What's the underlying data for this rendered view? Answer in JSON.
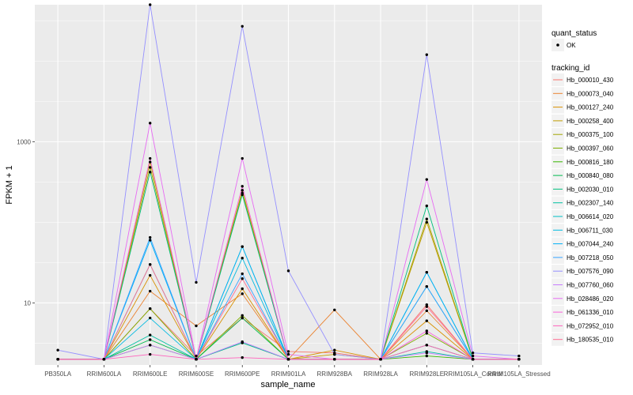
{
  "chart_data": {
    "type": "line",
    "xlabel": "sample_name",
    "ylabel": "FPKM + 1",
    "y_scale": "log10",
    "ylim": [
      1.7,
      50000
    ],
    "y_ticks": [
      10,
      1000
    ],
    "grid": true,
    "legend_position": "right",
    "categories": [
      "PB350LA",
      "RRIM600LA",
      "RRIM600LE",
      "RRIM600SE",
      "RRIM600PE",
      "RRIM901LA",
      "RRIM928BA",
      "RRIM928LA",
      "RRIM928LE",
      "RRIM105LA_Control",
      "RRIM105LA_Stressed"
    ],
    "quant_status": {
      "title": "quant_status",
      "items": [
        "OK"
      ]
    },
    "tracking_id_title": "tracking_id",
    "series": [
      {
        "name": "Hb_000010_430",
        "color": "#F8766D",
        "values": [
          2.0,
          2.0,
          8.5,
          2.2,
          6.5,
          2.5,
          2.4,
          2.0,
          9.5,
          2.0,
          2.0
        ]
      },
      {
        "name": "Hb_000073_040",
        "color": "#EA8331",
        "values": [
          2.0,
          2.0,
          14.0,
          5.2,
          13.0,
          2.0,
          8.2,
          2.0,
          8.0,
          2.0,
          2.0
        ]
      },
      {
        "name": "Hb_000127_240",
        "color": "#D89000",
        "values": [
          2.0,
          2.0,
          22.0,
          2.0,
          15.0,
          2.0,
          2.6,
          2.0,
          6.0,
          2.0,
          2.0
        ]
      },
      {
        "name": "Hb_000258_400",
        "color": "#C09B00",
        "values": [
          2.0,
          2.0,
          560.0,
          2.0,
          250.0,
          2.0,
          2.3,
          2.0,
          100.0,
          2.0,
          2.0
        ]
      },
      {
        "name": "Hb_000375_100",
        "color": "#A3A500",
        "values": [
          2.0,
          2.0,
          480.0,
          2.0,
          230.0,
          2.0,
          2.0,
          2.0,
          110.0,
          2.0,
          2.0
        ]
      },
      {
        "name": "Hb_000397_060",
        "color": "#7CAE00",
        "values": [
          2.0,
          2.0,
          8.5,
          2.0,
          7.0,
          2.0,
          2.0,
          2.0,
          4.2,
          2.0,
          2.0
        ]
      },
      {
        "name": "Hb_000816_180",
        "color": "#39B600",
        "values": [
          2.0,
          2.0,
          3.0,
          2.0,
          3.2,
          2.0,
          2.0,
          2.0,
          2.2,
          2.0,
          2.0
        ]
      },
      {
        "name": "Hb_000840_080",
        "color": "#00BB4E",
        "values": [
          2.0,
          2.0,
          3.5,
          2.0,
          6.5,
          2.0,
          2.0,
          2.0,
          3.0,
          2.0,
          2.0
        ]
      },
      {
        "name": "Hb_002030_010",
        "color": "#00BF7D",
        "values": [
          2.0,
          2.0,
          420.0,
          2.0,
          220.0,
          2.0,
          2.0,
          2.0,
          160.0,
          2.0,
          2.0
        ]
      },
      {
        "name": "Hb_002307_140",
        "color": "#00C1A3",
        "values": [
          2.0,
          2.0,
          4.0,
          2.0,
          3.2,
          2.0,
          2.0,
          2.0,
          2.5,
          2.0,
          2.0
        ]
      },
      {
        "name": "Hb_006614_020",
        "color": "#00BFC4",
        "values": [
          2.0,
          2.0,
          30.0,
          2.0,
          50.0,
          2.0,
          2.0,
          2.0,
          16.0,
          2.0,
          2.0
        ]
      },
      {
        "name": "Hb_006711_030",
        "color": "#00BAE0",
        "values": [
          2.0,
          2.0,
          6.5,
          2.0,
          36.0,
          2.0,
          2.0,
          2.0,
          24.0,
          2.0,
          2.0
        ]
      },
      {
        "name": "Hb_007044_240",
        "color": "#00B0F6",
        "values": [
          2.0,
          2.0,
          60.0,
          2.0,
          50.0,
          2.0,
          2.0,
          2.0,
          24.0,
          2.0,
          2.0
        ]
      },
      {
        "name": "Hb_007218_050",
        "color": "#35A2FF",
        "values": [
          2.0,
          2.0,
          65.0,
          2.0,
          23.0,
          2.0,
          2.0,
          2.0,
          16.0,
          2.0,
          2.0
        ]
      },
      {
        "name": "Hb_007576_090",
        "color": "#9590FF",
        "values": [
          2.6,
          2.0,
          50000.0,
          18.0,
          27000.0,
          25.0,
          2.3,
          2.0,
          12000.0,
          2.4,
          2.2
        ]
      },
      {
        "name": "Hb_007760_060",
        "color": "#C77CFF",
        "values": [
          2.0,
          2.0,
          3.0,
          2.0,
          3.3,
          2.0,
          2.0,
          2.0,
          2.4,
          2.0,
          2.0
        ]
      },
      {
        "name": "Hb_028486_020",
        "color": "#E76BF3",
        "values": [
          2.0,
          2.0,
          1700.0,
          2.0,
          620.0,
          2.3,
          2.0,
          2.0,
          340.0,
          2.2,
          2.0
        ]
      },
      {
        "name": "Hb_061336_010",
        "color": "#FA62DB",
        "values": [
          2.0,
          2.0,
          620.0,
          2.0,
          280.0,
          2.0,
          2.0,
          2.0,
          4.5,
          2.0,
          2.0
        ]
      },
      {
        "name": "Hb_072952_010",
        "color": "#FF62BC",
        "values": [
          2.0,
          2.0,
          2.3,
          2.0,
          2.1,
          2.0,
          2.0,
          2.0,
          3.0,
          2.0,
          2.0
        ]
      },
      {
        "name": "Hb_180535_010",
        "color": "#FF6C91",
        "values": [
          2.0,
          2.0,
          30.0,
          2.0,
          20.0,
          2.0,
          2.0,
          2.0,
          9.0,
          2.0,
          2.0
        ]
      }
    ]
  }
}
